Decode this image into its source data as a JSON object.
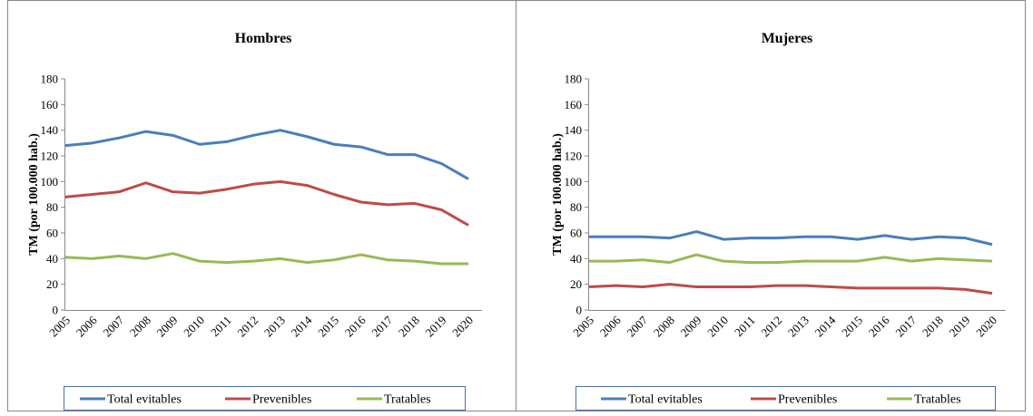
{
  "chart_data": [
    {
      "type": "line",
      "title": "Hombres",
      "y_label": "TM (por 100.000 hab.)",
      "categories": [
        "2005",
        "2006",
        "2007",
        "2008",
        "2009",
        "2010",
        "2011",
        "2012",
        "2013",
        "2014",
        "2015",
        "2016",
        "2017",
        "2018",
        "2019",
        "2020"
      ],
      "series": [
        {
          "name": "Total evitables",
          "color": "#4a7ebb",
          "values": [
            128,
            130,
            134,
            139,
            136,
            129,
            131,
            136,
            140,
            135,
            129,
            127,
            121,
            121,
            114,
            102
          ]
        },
        {
          "name": "Prevenibles",
          "color": "#be4b48",
          "values": [
            88,
            90,
            92,
            99,
            92,
            91,
            94,
            98,
            100,
            97,
            90,
            84,
            82,
            83,
            78,
            66
          ]
        },
        {
          "name": "Tratables",
          "color": "#98b954",
          "values": [
            41,
            40,
            42,
            40,
            44,
            38,
            37,
            38,
            40,
            37,
            39,
            43,
            39,
            38,
            36,
            36
          ]
        }
      ],
      "ylim": [
        0,
        180
      ],
      "yticks": [
        0,
        20,
        40,
        60,
        80,
        100,
        120,
        140,
        160,
        180
      ]
    },
    {
      "type": "line",
      "title": "Mujeres",
      "y_label": "TM (por 100.000 hab.)",
      "categories": [
        "2005",
        "2006",
        "2007",
        "2008",
        "2009",
        "2010",
        "2011",
        "2012",
        "2013",
        "2014",
        "2015",
        "2016",
        "2017",
        "2018",
        "2019",
        "2020"
      ],
      "series": [
        {
          "name": "Total evitables",
          "color": "#4a7ebb",
          "values": [
            57,
            57,
            57,
            56,
            61,
            55,
            56,
            56,
            57,
            57,
            55,
            58,
            55,
            57,
            56,
            51
          ]
        },
        {
          "name": "Prevenibles",
          "color": "#be4b48",
          "values": [
            18,
            19,
            18,
            20,
            18,
            18,
            18,
            19,
            19,
            18,
            17,
            17,
            17,
            17,
            16,
            13
          ]
        },
        {
          "name": "Tratables",
          "color": "#98b954",
          "values": [
            38,
            38,
            39,
            37,
            43,
            38,
            37,
            37,
            38,
            38,
            38,
            41,
            38,
            40,
            39,
            38
          ]
        }
      ],
      "ylim": [
        0,
        180
      ],
      "yticks": [
        0,
        20,
        40,
        60,
        80,
        100,
        120,
        140,
        160,
        180
      ]
    }
  ]
}
